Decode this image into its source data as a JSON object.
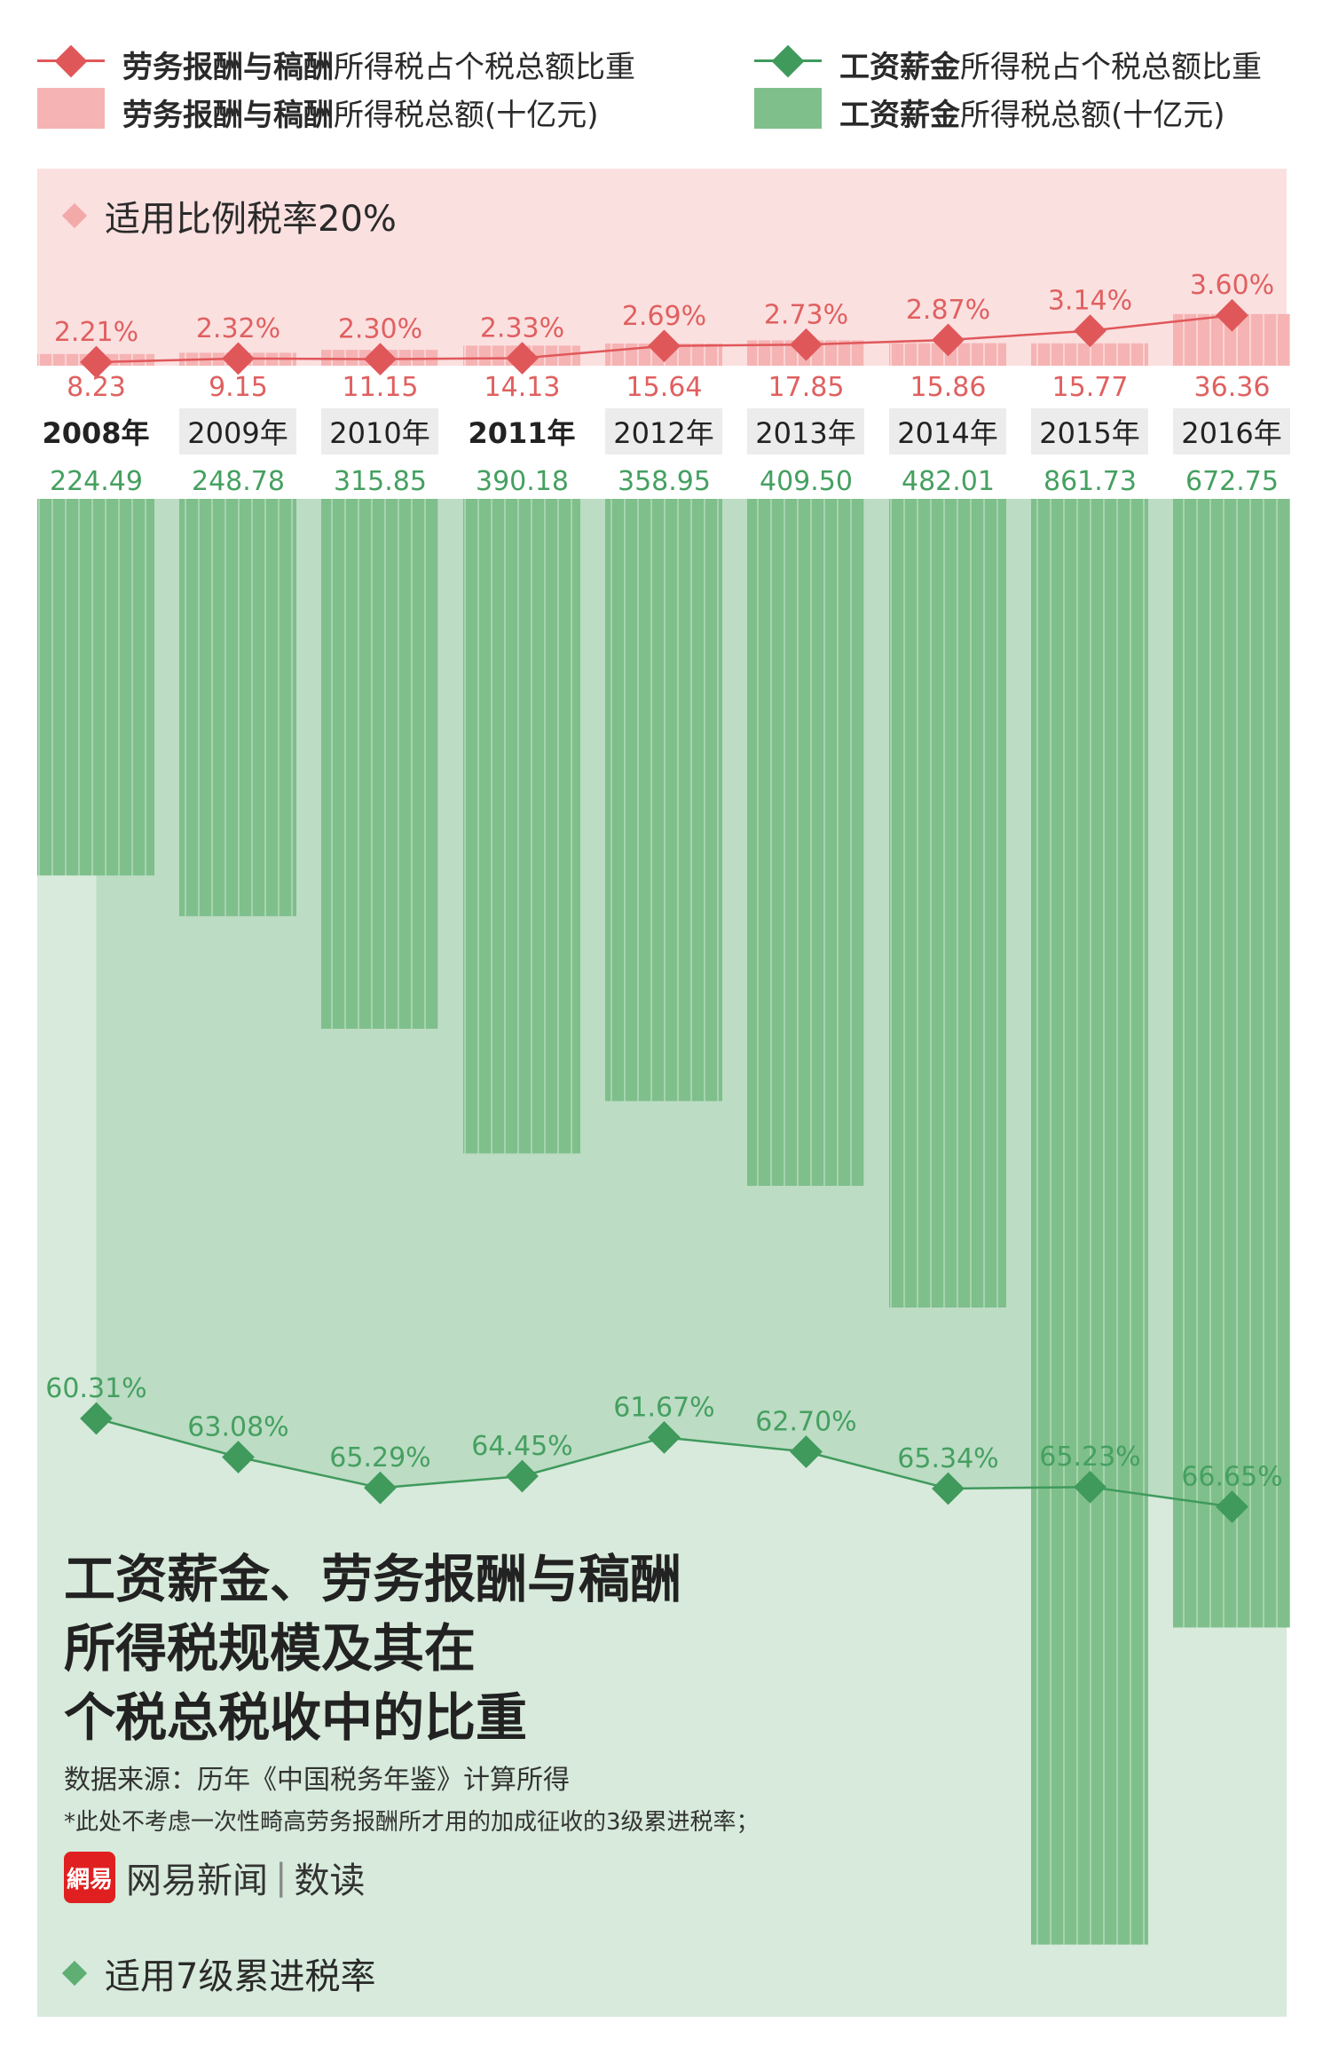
{
  "legend": {
    "red_line_bold": "劳务报酬与稿酬",
    "red_line_rest": "所得税占个税总额比重",
    "red_bar_bold": "劳务报酬与稿酬",
    "red_bar_rest": "所得税总额(十亿元)",
    "green_line_bold": "工资薪金",
    "green_line_rest": "所得税占个税总额比重",
    "green_bar_bold": "工资薪金",
    "green_bar_rest": "所得税总额(十亿元)"
  },
  "section_top_label": "适用比例税率20%",
  "section_bottom_label": "适用7级累进税率",
  "title_lines": [
    "工资薪金、劳务报酬与稿酬",
    "所得税规模及其在",
    "个税总税收中的比重"
  ],
  "source": "数据来源：历年《中国税务年鉴》计算所得",
  "note": "*此处不考虑一次性畸高劳务报酬所才用的加成征收的3级累进税率；",
  "brand": {
    "logo": "網易",
    "name": "网易新闻",
    "sep": "|",
    "sub": "数读"
  },
  "colors": {
    "red_band": "#fbe0e0",
    "red_bar": "#f6b3b3",
    "red_line": "#e0575a",
    "red_text": "#e06060",
    "green_band": "#d7eadb",
    "green_area": "#bcdcc4",
    "green_bar": "#7fbf8b",
    "green_line": "#3f9a5c",
    "green_text": "#45a060"
  },
  "chart_data": {
    "type": "bar",
    "categories": [
      "2008年",
      "2009年",
      "2010年",
      "2011年",
      "2012年",
      "2013年",
      "2014年",
      "2015年",
      "2016年"
    ],
    "bold_categories": [
      "2008年",
      "2011年"
    ],
    "series": [
      {
        "name": "劳务报酬与稿酬所得税总额(十亿元)",
        "values": [
          8.23,
          9.15,
          11.15,
          14.13,
          15.64,
          17.85,
          15.86,
          15.77,
          36.36
        ],
        "labels": [
          "8.23",
          "9.15",
          "11.15",
          "14.13",
          "15.64",
          "17.85",
          "15.86",
          "15.77",
          "36.36"
        ]
      },
      {
        "name": "劳务报酬与稿酬所得税占个税总额比重",
        "values": [
          2.21,
          2.32,
          2.3,
          2.33,
          2.69,
          2.73,
          2.87,
          3.14,
          3.6
        ],
        "labels": [
          "2.21%",
          "2.32%",
          "2.30%",
          "2.33%",
          "2.69%",
          "2.73%",
          "2.87%",
          "3.14%",
          "3.60%"
        ]
      },
      {
        "name": "工资薪金所得税总额(十亿元)",
        "values": [
          224.49,
          248.78,
          315.85,
          390.18,
          358.95,
          409.5,
          482.01,
          861.73,
          672.75
        ],
        "labels": [
          "224.49",
          "248.78",
          "315.85",
          "390.18",
          "358.95",
          "409.50",
          "482.01",
          "861.73",
          "672.75"
        ]
      },
      {
        "name": "工资薪金所得税占个税总额比重",
        "values": [
          60.31,
          63.08,
          65.29,
          64.45,
          61.67,
          62.7,
          65.34,
          65.23,
          66.65
        ],
        "labels": [
          "60.31%",
          "63.08%",
          "65.29%",
          "64.45%",
          "61.67%",
          "62.70%",
          "65.34%",
          "65.23%",
          "66.65%"
        ]
      }
    ]
  }
}
